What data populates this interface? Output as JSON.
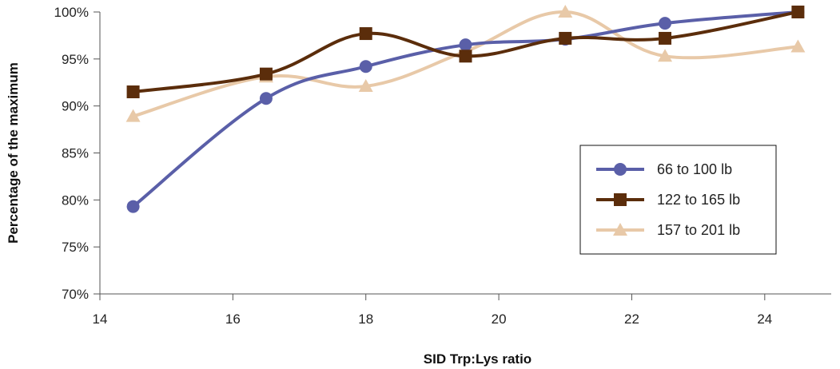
{
  "chart_data": {
    "type": "line",
    "xlabel": "SID Trp:Lys ratio",
    "ylabel": "Percentage of the maximum",
    "xlim": [
      14,
      25
    ],
    "ylim": [
      70,
      100
    ],
    "x_ticks": [
      "14",
      "16",
      "18",
      "20",
      "22",
      "24"
    ],
    "y_ticks": [
      "70%",
      "75%",
      "80%",
      "85%",
      "90%",
      "95%",
      "100%"
    ],
    "grid": false,
    "legend_position": "right",
    "series": [
      {
        "name": "66 to 100 lb",
        "color": "#5a5fa8",
        "marker": "circle",
        "x": [
          14.5,
          16.5,
          18,
          19.5,
          21,
          22.5,
          24.5
        ],
        "values": [
          79.3,
          90.8,
          94.2,
          96.5,
          97.1,
          98.8,
          100
        ]
      },
      {
        "name": "122 to 165 lb",
        "color": "#5b2d0b",
        "marker": "square",
        "x": [
          14.5,
          16.5,
          18,
          19.5,
          21,
          22.5,
          24.5
        ],
        "values": [
          91.5,
          93.4,
          97.7,
          95.3,
          97.2,
          97.2,
          100
        ]
      },
      {
        "name": "157 to 201 lb",
        "color": "#e8c9a8",
        "marker": "triangle",
        "x": [
          14.5,
          16.5,
          18,
          19.5,
          21,
          22.5,
          24.5
        ],
        "values": [
          88.9,
          93.1,
          92.1,
          95.8,
          100,
          95.3,
          96.3
        ]
      }
    ]
  }
}
